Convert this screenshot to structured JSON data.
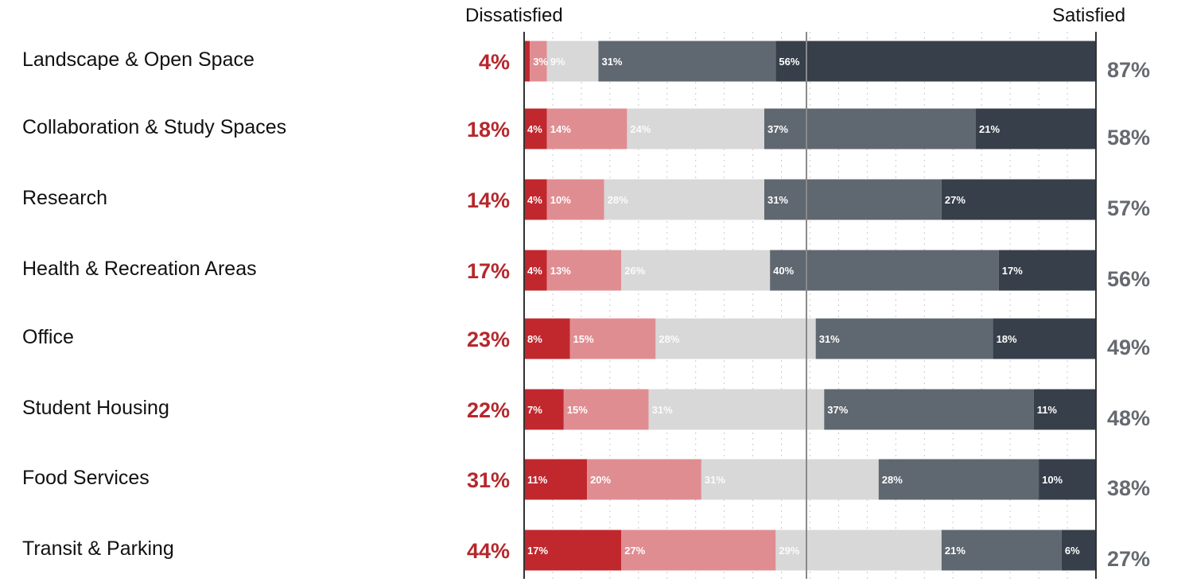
{
  "header": {
    "left": "Dissatisfied",
    "right": "Satisfied"
  },
  "colors": {
    "very_dissatisfied": "#c0282e",
    "dissatisfied": "#e08d92",
    "neutral": "#d8d8d8",
    "satisfied": "#5f6770",
    "very_satisfied": "#363f4a",
    "dissatisfied_total_text": "#b5282d",
    "satisfied_total_text": "#666a70"
  },
  "chart_data": {
    "type": "bar",
    "subtype": "stacked-horizontal-diverging",
    "categories": [
      "Landscape & Open Space",
      "Collaboration & Study Spaces",
      "Research",
      "Health & Recreation Areas",
      "Office",
      "Student Housing",
      "Food Services",
      "Transit & Parking"
    ],
    "series": [
      {
        "values": [
          1,
          4,
          4,
          4,
          8,
          7,
          11,
          17
        ],
        "labels": [
          "",
          "4%",
          "4%",
          "4%",
          "8%",
          "7%",
          "11%",
          "17%"
        ]
      },
      {
        "values": [
          3,
          14,
          10,
          13,
          15,
          15,
          20,
          27
        ],
        "labels": [
          "3%",
          "14%",
          "10%",
          "13%",
          "15%",
          "15%",
          "20%",
          "27%"
        ]
      },
      {
        "values": [
          9,
          24,
          28,
          26,
          28,
          31,
          31,
          29
        ],
        "labels": [
          "9%",
          "24%",
          "28%",
          "26%",
          "28%",
          "31%",
          "31%",
          "29%"
        ]
      },
      {
        "values": [
          31,
          37,
          31,
          40,
          31,
          37,
          28,
          21
        ],
        "labels": [
          "31%",
          "37%",
          "31%",
          "40%",
          "31%",
          "37%",
          "28%",
          "21%"
        ]
      },
      {
        "values": [
          56,
          21,
          27,
          17,
          18,
          11,
          10,
          6
        ],
        "labels": [
          "56%",
          "21%",
          "27%",
          "17%",
          "18%",
          "11%",
          "10%",
          "6%"
        ]
      }
    ],
    "dissatisfied_totals": [
      "4%",
      "18%",
      "14%",
      "17%",
      "23%",
      "22%",
      "31%",
      "44%"
    ],
    "satisfied_totals": [
      "87%",
      "58%",
      "57%",
      "56%",
      "49%",
      "48%",
      "38%",
      "27%"
    ],
    "grid": true,
    "legend": "none"
  }
}
